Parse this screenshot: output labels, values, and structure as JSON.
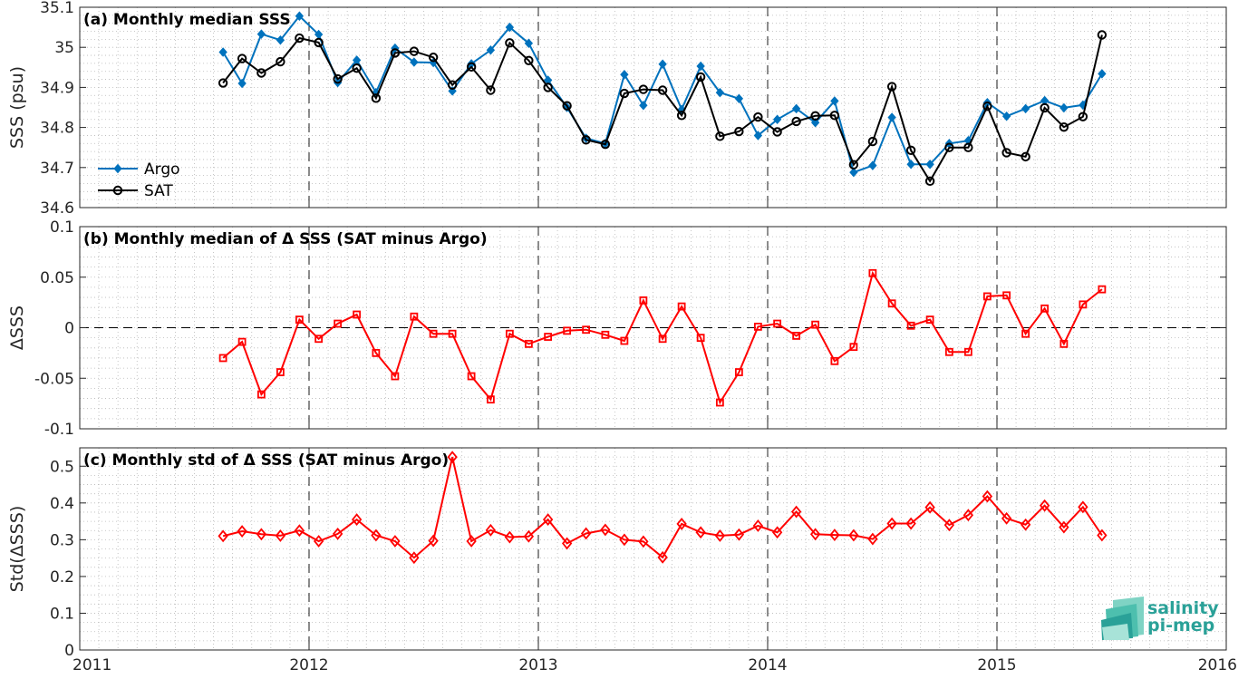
{
  "chart_data": [
    {
      "type": "line",
      "title": "(a) Monthly median SSS",
      "ylabel": "SSS (psu)",
      "xlabel": "",
      "xlim": [
        2011,
        2016
      ],
      "ylim": [
        34.6,
        35.1
      ],
      "yticks": [
        "34.6",
        "34.7",
        "34.8",
        "34.9",
        "35",
        "35.1"
      ],
      "grid": "dotted minor grid",
      "legend_position": "lower-left",
      "x": [
        2011.625,
        2011.708,
        2011.792,
        2011.875,
        2011.958,
        2012.042,
        2012.125,
        2012.208,
        2012.292,
        2012.375,
        2012.458,
        2012.542,
        2012.625,
        2012.708,
        2012.792,
        2012.875,
        2012.958,
        2013.042,
        2013.125,
        2013.208,
        2013.292,
        2013.375,
        2013.458,
        2013.542,
        2013.625,
        2013.708,
        2013.792,
        2013.875,
        2013.958,
        2014.042,
        2014.125,
        2014.208,
        2014.292,
        2014.375,
        2014.458,
        2014.542,
        2014.625,
        2014.708,
        2014.792,
        2014.875,
        2014.958,
        2015.042,
        2015.125,
        2015.208,
        2015.292,
        2015.375,
        2015.458
      ],
      "series": [
        {
          "name": "Argo",
          "color": "#0072bd",
          "marker": "diamond",
          "values": [
            34.988,
            34.91,
            35.033,
            35.018,
            35.078,
            35.032,
            34.912,
            34.968,
            34.887,
            34.998,
            34.963,
            34.962,
            34.891,
            34.959,
            34.993,
            35.05,
            35.01,
            34.918,
            34.85,
            34.773,
            34.76,
            34.932,
            34.855,
            34.958,
            34.845,
            34.953,
            34.887,
            34.872,
            34.78,
            34.82,
            34.847,
            34.812,
            34.866,
            34.688,
            34.705,
            34.825,
            34.708,
            34.708,
            34.76,
            34.767,
            34.862,
            34.828,
            34.847,
            34.867,
            34.849,
            34.856,
            34.934
          ]
        },
        {
          "name": "SAT",
          "color": "#000000",
          "marker": "circle",
          "values": [
            34.911,
            34.972,
            34.936,
            34.964,
            35.023,
            35.012,
            34.921,
            34.948,
            34.873,
            34.986,
            34.99,
            34.975,
            34.906,
            34.951,
            34.893,
            35.011,
            34.967,
            34.9,
            34.854,
            34.769,
            34.758,
            34.885,
            34.895,
            34.893,
            34.83,
            34.926,
            34.778,
            34.79,
            34.826,
            34.789,
            34.815,
            34.829,
            34.83,
            34.707,
            34.765,
            34.902,
            34.743,
            34.666,
            34.75,
            34.75,
            34.853,
            34.737,
            34.727,
            34.849,
            34.801,
            34.827,
            35.031
          ]
        }
      ]
    },
    {
      "type": "line",
      "title": "(b) Monthly median of Δ SSS (SAT minus Argo)",
      "ylabel": "ΔSSS",
      "xlabel": "",
      "xlim": [
        2011,
        2016
      ],
      "ylim": [
        -0.1,
        0.1
      ],
      "yticks": [
        "-0.1",
        "-0.05",
        "0",
        "0.05",
        "0.1"
      ],
      "zero_line": "dashed",
      "grid": "dotted minor grid",
      "x": [
        2011.625,
        2011.708,
        2011.792,
        2011.875,
        2011.958,
        2012.042,
        2012.125,
        2012.208,
        2012.292,
        2012.375,
        2012.458,
        2012.542,
        2012.625,
        2012.708,
        2012.792,
        2012.875,
        2012.958,
        2013.042,
        2013.125,
        2013.208,
        2013.292,
        2013.375,
        2013.458,
        2013.542,
        2013.625,
        2013.708,
        2013.792,
        2013.875,
        2013.958,
        2014.042,
        2014.125,
        2014.208,
        2014.292,
        2014.375,
        2014.458,
        2014.542,
        2014.625,
        2014.708,
        2014.792,
        2014.875,
        2014.958,
        2015.042,
        2015.125,
        2015.208,
        2015.292,
        2015.375,
        2015.458
      ],
      "series": [
        {
          "name": "",
          "color": "#ff0000",
          "marker": "square",
          "values": [
            -0.03,
            -0.014,
            -0.066,
            -0.044,
            0.008,
            -0.011,
            0.004,
            0.013,
            -0.025,
            -0.048,
            0.011,
            -0.006,
            -0.006,
            -0.048,
            -0.071,
            -0.006,
            -0.016,
            -0.009,
            -0.003,
            -0.002,
            -0.007,
            -0.013,
            0.027,
            -0.011,
            0.021,
            -0.01,
            -0.074,
            -0.044,
            0.001,
            0.004,
            -0.008,
            0.003,
            -0.033,
            -0.019,
            0.054,
            0.024,
            0.002,
            0.008,
            -0.024,
            -0.024,
            0.031,
            0.032,
            -0.006,
            0.019,
            -0.016,
            0.023,
            0.038
          ]
        }
      ]
    },
    {
      "type": "line",
      "title": "(c) Monthly std of Δ SSS (SAT minus Argo)",
      "ylabel": "Std(ΔSSS)",
      "xlabel": "",
      "xlim": [
        2011,
        2016
      ],
      "ylim": [
        0,
        0.55
      ],
      "yticks": [
        "0",
        "0.1",
        "0.2",
        "0.3",
        "0.4",
        "0.5"
      ],
      "xticks": [
        "2011",
        "2012",
        "2013",
        "2014",
        "2015",
        "2016"
      ],
      "grid": "dotted minor grid",
      "x": [
        2011.625,
        2011.708,
        2011.792,
        2011.875,
        2011.958,
        2012.042,
        2012.125,
        2012.208,
        2012.292,
        2012.375,
        2012.458,
        2012.542,
        2012.625,
        2012.708,
        2012.792,
        2012.875,
        2012.958,
        2013.042,
        2013.125,
        2013.208,
        2013.292,
        2013.375,
        2013.458,
        2013.542,
        2013.625,
        2013.708,
        2013.792,
        2013.875,
        2013.958,
        2014.042,
        2014.125,
        2014.208,
        2014.292,
        2014.375,
        2014.458,
        2014.542,
        2014.625,
        2014.708,
        2014.792,
        2014.875,
        2014.958,
        2015.042,
        2015.125,
        2015.208,
        2015.292,
        2015.375,
        2015.458
      ],
      "series": [
        {
          "name": "",
          "color": "#ff0000",
          "marker": "diamond",
          "values": [
            0.31,
            0.323,
            0.315,
            0.311,
            0.325,
            0.296,
            0.316,
            0.355,
            0.312,
            0.296,
            0.251,
            0.297,
            0.525,
            0.296,
            0.326,
            0.307,
            0.309,
            0.355,
            0.29,
            0.317,
            0.327,
            0.3,
            0.295,
            0.252,
            0.343,
            0.32,
            0.311,
            0.314,
            0.338,
            0.32,
            0.376,
            0.315,
            0.313,
            0.312,
            0.302,
            0.344,
            0.344,
            0.388,
            0.34,
            0.367,
            0.418,
            0.358,
            0.341,
            0.393,
            0.334,
            0.389,
            0.312
          ]
        }
      ]
    }
  ],
  "logo": {
    "line1": "salinity",
    "line2": "pi-mep",
    "color": "#2aa198"
  }
}
